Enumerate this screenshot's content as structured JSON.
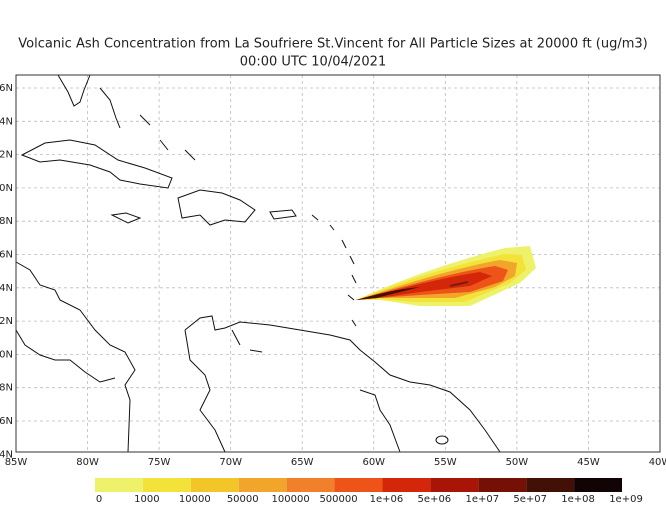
{
  "title": "Volcanic Ash Concentration from La Soufriere St.Vincent for All Particle Sizes at 20000 ft (ug/m3)",
  "subtitle": "00:00 UTC 10/04/2021",
  "lon_labels": [
    "85W",
    "80W",
    "75W",
    "70W",
    "65W",
    "60W",
    "55W",
    "50W",
    "45W",
    "40W"
  ],
  "lat_labels": [
    "6N",
    "4N",
    "2N",
    "0N",
    "8N",
    "6N",
    "4N",
    "2N",
    "0N",
    "8N",
    "6N",
    "4N"
  ],
  "legend": {
    "colors": [
      "#eef26a",
      "#f3e23a",
      "#f2c629",
      "#f1a52a",
      "#f0802a",
      "#ee5418",
      "#d42608",
      "#a81406",
      "#741006",
      "#421004",
      "#120404"
    ],
    "labels": [
      "0",
      "1000",
      "10000",
      "50000",
      "100000",
      "500000",
      "1e+06",
      "5e+06",
      "1e+07",
      "5e+07",
      "1e+08",
      "1e+09"
    ]
  }
}
